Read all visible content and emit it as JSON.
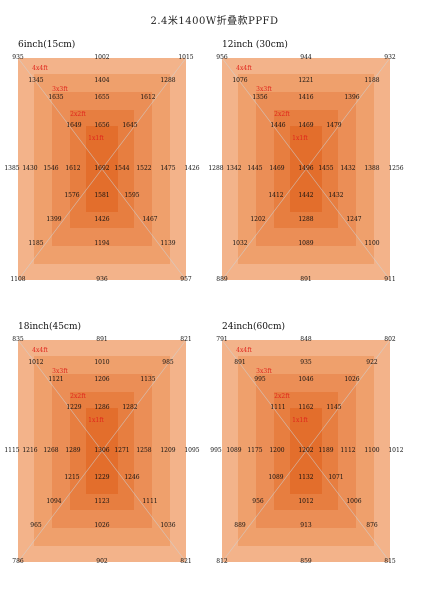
{
  "title": "2.4米1400W折叠款PPFD",
  "colors": {
    "ring1": "#f3b38a",
    "ring2": "#efa06c",
    "ring3": "#eb8e56",
    "ring4": "#e77e40",
    "ring5": "#e36e2c",
    "diagonal": "#c9d6df",
    "zone_label": "#e0241b"
  },
  "zone_labels": [
    "4x4ft",
    "3x3ft",
    "2x2ft",
    "1x1ft"
  ],
  "panels": [
    {
      "title": "6inch(15cm)",
      "top": [
        "935",
        "1002",
        "1015"
      ],
      "r1": [
        "1345",
        "1404",
        "1288"
      ],
      "r2": [
        "1635",
        "1655",
        "1612"
      ],
      "r3": [
        "1649",
        "1656",
        "1645"
      ],
      "mid": [
        "1385",
        "1430",
        "1546",
        "1612",
        "1692",
        "1544",
        "1522",
        "1475",
        "1426"
      ],
      "b3": [
        "1576",
        "1581",
        "1595"
      ],
      "b2": [
        "1399",
        "1426",
        "1467"
      ],
      "b1": [
        "1185",
        "1194",
        "1139"
      ],
      "bottom": [
        "1108",
        "936",
        "957"
      ]
    },
    {
      "title": "12inch (30cm)",
      "top": [
        "956",
        "944",
        "932"
      ],
      "r1": [
        "1076",
        "1221",
        "1188"
      ],
      "r2": [
        "1356",
        "1416",
        "1396"
      ],
      "r3": [
        "1446",
        "1469",
        "1479"
      ],
      "mid": [
        "1288",
        "1342",
        "1445",
        "1469",
        "1496",
        "1455",
        "1432",
        "1388",
        "1256"
      ],
      "b3": [
        "1412",
        "1442",
        "1432"
      ],
      "b2": [
        "1202",
        "1288",
        "1247"
      ],
      "b1": [
        "1032",
        "1089",
        "1100"
      ],
      "bottom": [
        "889",
        "891",
        "911"
      ]
    },
    {
      "title": "18inch(45cm)",
      "top": [
        "835",
        "891",
        "821"
      ],
      "r1": [
        "1012",
        "1010",
        "985"
      ],
      "r2": [
        "1121",
        "1206",
        "1135"
      ],
      "r3": [
        "1229",
        "1286",
        "1282"
      ],
      "mid": [
        "1115",
        "1216",
        "1268",
        "1289",
        "1306",
        "1271",
        "1258",
        "1209",
        "1095"
      ],
      "b3": [
        "1215",
        "1229",
        "1246"
      ],
      "b2": [
        "1094",
        "1123",
        "1111"
      ],
      "b1": [
        "965",
        "1026",
        "1036"
      ],
      "bottom": [
        "786",
        "902",
        "821"
      ]
    },
    {
      "title": "24inch(60cm)",
      "top": [
        "791",
        "848",
        "802"
      ],
      "r1": [
        "891",
        "935",
        "922"
      ],
      "r2": [
        "995",
        "1046",
        "1026"
      ],
      "r3": [
        "1111",
        "1162",
        "1145"
      ],
      "mid": [
        "995",
        "1089",
        "1175",
        "1200",
        "1202",
        "1189",
        "1112",
        "1100",
        "1012"
      ],
      "b3": [
        "1089",
        "1132",
        "1071"
      ],
      "b2": [
        "956",
        "1012",
        "1006"
      ],
      "b1": [
        "889",
        "913",
        "876"
      ],
      "bottom": [
        "812",
        "859",
        "815"
      ]
    }
  ]
}
